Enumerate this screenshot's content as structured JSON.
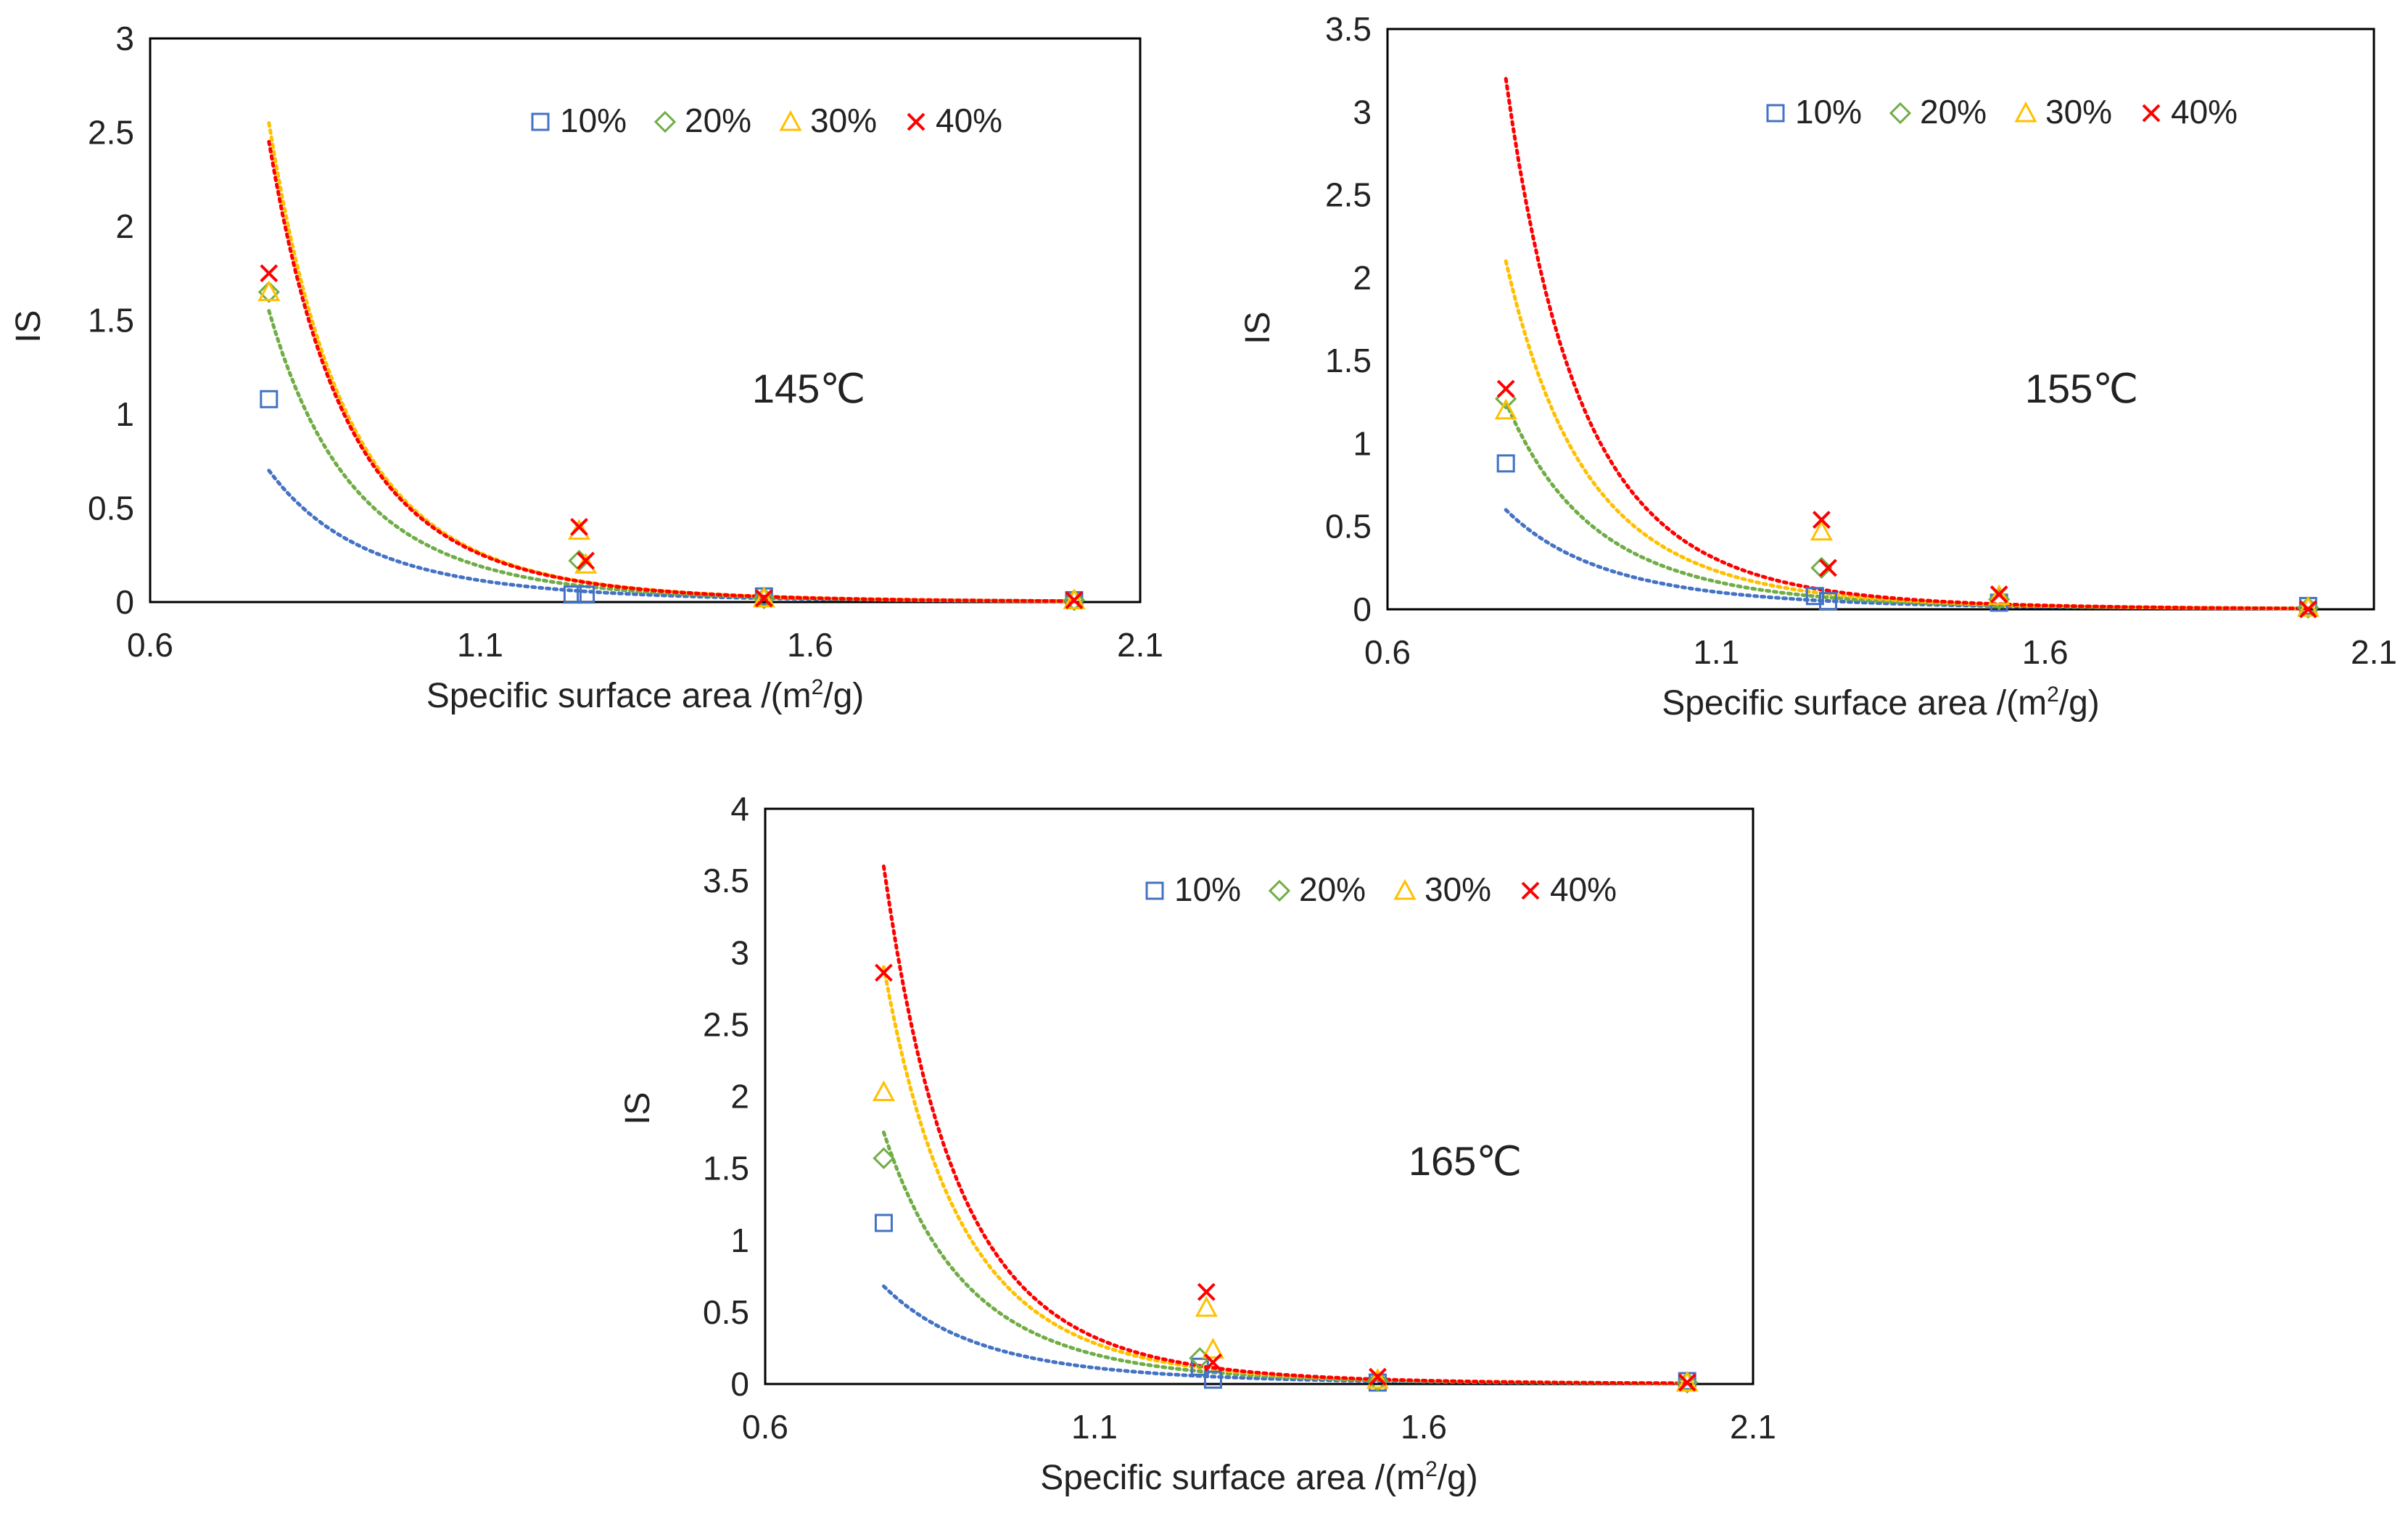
{
  "figure": {
    "series_colors": {
      "10%": "#4472c4",
      "20%": "#70ad47",
      "30%": "#ffc000",
      "40%": "#ff0000"
    },
    "marker_shapes": {
      "10%": "square",
      "20%": "diamond",
      "30%": "triangle",
      "40%": "cross"
    }
  },
  "chart_data": [
    {
      "type": "scatter",
      "title": "",
      "annotation": "145℃",
      "xlabel": "Specific surface area /(m",
      "xlabel_sup": "2",
      "xlabel_tail": "/g)",
      "ylabel": "IS",
      "xlim": [
        0.6,
        2.1
      ],
      "ylim": [
        0,
        3
      ],
      "xticks": [
        "0.6",
        "1.1",
        "1.6",
        "2.1"
      ],
      "yticks": [
        "0",
        "0.5",
        "1",
        "1.5",
        "2",
        "2.5",
        "3"
      ],
      "legend": [
        "10%",
        "20%",
        "30%",
        "40%"
      ],
      "legend_position": "top-right",
      "series": [
        {
          "name": "10%",
          "x": [
            0.78,
            1.24,
            1.26,
            1.53,
            2.0
          ],
          "y": [
            1.08,
            0.04,
            0.04,
            0.03,
            0.01
          ]
        },
        {
          "name": "20%",
          "x": [
            0.78,
            1.25,
            1.53,
            2.0
          ],
          "y": [
            1.65,
            0.22,
            0.02,
            0.01
          ]
        },
        {
          "name": "30%",
          "x": [
            0.78,
            1.25,
            1.26,
            1.53,
            2.0
          ],
          "y": [
            1.65,
            0.38,
            0.2,
            0.02,
            0.01
          ]
        },
        {
          "name": "40%",
          "x": [
            0.78,
            1.25,
            1.26,
            1.53,
            2.0
          ],
          "y": [
            1.75,
            0.4,
            0.22,
            0.02,
            0.01
          ]
        }
      ],
      "trendlines": [
        {
          "name": "10%",
          "x_range": [
            0.78,
            2.0
          ],
          "y_start": 0.7,
          "y_end": 0.005
        },
        {
          "name": "20%",
          "x_range": [
            0.78,
            2.0
          ],
          "y_start": 1.55,
          "y_end": 0.005
        },
        {
          "name": "30%",
          "x_range": [
            0.78,
            2.0
          ],
          "y_start": 2.55,
          "y_end": 0.005
        },
        {
          "name": "40%",
          "x_range": [
            0.78,
            2.0
          ],
          "y_start": 2.45,
          "y_end": 0.005
        }
      ]
    },
    {
      "type": "scatter",
      "title": "",
      "annotation": "155℃",
      "xlabel": "Specific surface area /(m",
      "xlabel_sup": "2",
      "xlabel_tail": "/g)",
      "ylabel": "IS",
      "xlim": [
        0.6,
        2.1
      ],
      "ylim": [
        0,
        3.5
      ],
      "xticks": [
        "0.6",
        "1.1",
        "1.6",
        "2.1"
      ],
      "yticks": [
        "0",
        "0.5",
        "1",
        "1.5",
        "2",
        "2.5",
        "3",
        "3.5"
      ],
      "legend": [
        "10%",
        "20%",
        "30%",
        "40%"
      ],
      "legend_position": "top-right",
      "series": [
        {
          "name": "10%",
          "x": [
            0.78,
            1.25,
            1.27,
            1.53,
            2.0
          ],
          "y": [
            0.88,
            0.08,
            0.05,
            0.04,
            0.02
          ]
        },
        {
          "name": "20%",
          "x": [
            0.78,
            1.26,
            1.53,
            2.0
          ],
          "y": [
            1.27,
            0.25,
            0.06,
            0.01
          ]
        },
        {
          "name": "30%",
          "x": [
            0.78,
            1.26,
            1.53,
            2.0
          ],
          "y": [
            1.2,
            0.47,
            0.08,
            0.01
          ]
        },
        {
          "name": "40%",
          "x": [
            0.78,
            1.26,
            1.27,
            1.53,
            2.0
          ],
          "y": [
            1.33,
            0.54,
            0.25,
            0.09,
            0.0
          ]
        }
      ],
      "trendlines": [
        {
          "name": "10%",
          "x_range": [
            0.78,
            2.0
          ],
          "y_start": 0.6,
          "y_end": 0.005
        },
        {
          "name": "20%",
          "x_range": [
            0.78,
            2.0
          ],
          "y_start": 1.25,
          "y_end": 0.005
        },
        {
          "name": "30%",
          "x_range": [
            0.78,
            2.0
          ],
          "y_start": 2.1,
          "y_end": 0.005
        },
        {
          "name": "40%",
          "x_range": [
            0.78,
            2.0
          ],
          "y_start": 3.2,
          "y_end": 0.005
        }
      ]
    },
    {
      "type": "scatter",
      "title": "",
      "annotation": "165℃",
      "xlabel": "Specific surface area /(m",
      "xlabel_sup": "2",
      "xlabel_tail": "/g)",
      "ylabel": "IS",
      "xlim": [
        0.6,
        2.1
      ],
      "ylim": [
        0,
        4
      ],
      "xticks": [
        "0.6",
        "1.1",
        "1.6",
        "2.1"
      ],
      "yticks": [
        "0",
        "0.5",
        "1",
        "1.5",
        "2",
        "2.5",
        "3",
        "3.5",
        "4"
      ],
      "legend": [
        "10%",
        "20%",
        "30%",
        "40%"
      ],
      "legend_position": "top-right",
      "series": [
        {
          "name": "10%",
          "x": [
            0.78,
            1.26,
            1.28,
            1.53,
            2.0
          ],
          "y": [
            1.12,
            0.12,
            0.03,
            0.01,
            0.02
          ]
        },
        {
          "name": "20%",
          "x": [
            0.78,
            1.26,
            1.53,
            2.0
          ],
          "y": [
            1.57,
            0.18,
            0.02,
            0.01
          ]
        },
        {
          "name": "30%",
          "x": [
            0.78,
            1.27,
            1.28,
            1.53,
            2.0
          ],
          "y": [
            2.03,
            0.53,
            0.24,
            0.03,
            0.01
          ]
        },
        {
          "name": "40%",
          "x": [
            0.78,
            1.27,
            1.28,
            1.53,
            2.0
          ],
          "y": [
            2.86,
            0.64,
            0.15,
            0.05,
            0.01
          ]
        }
      ],
      "trendlines": [
        {
          "name": "10%",
          "x_range": [
            0.78,
            2.0
          ],
          "y_start": 0.68,
          "y_end": 0.005
        },
        {
          "name": "20%",
          "x_range": [
            0.78,
            2.0
          ],
          "y_start": 1.75,
          "y_end": 0.005
        },
        {
          "name": "30%",
          "x_range": [
            0.78,
            2.0
          ],
          "y_start": 2.9,
          "y_end": 0.005
        },
        {
          "name": "40%",
          "x_range": [
            0.78,
            2.0
          ],
          "y_start": 3.6,
          "y_end": 0.005
        }
      ]
    }
  ]
}
